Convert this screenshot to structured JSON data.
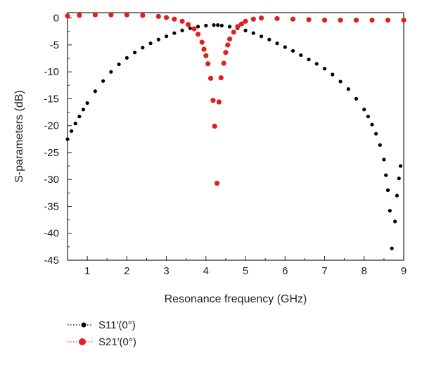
{
  "chart_data": {
    "type": "scatter",
    "xlabel": "Resonance frequency (GHz)",
    "ylabel": "S-parameters (dB)",
    "xlim": [
      0.5,
      9
    ],
    "ylim": [
      -45,
      1
    ],
    "xticks": [
      1,
      2,
      3,
      4,
      5,
      6,
      7,
      8,
      9
    ],
    "yticks": [
      0,
      -5,
      -10,
      -15,
      -20,
      -25,
      -30,
      -35,
      -40,
      -45
    ],
    "grid": false,
    "legend": "bottom-left, below plot",
    "series": [
      {
        "name": "S11′(0°)",
        "color": "#000000",
        "points": [
          [
            0.5,
            -22.5
          ],
          [
            0.6,
            -21.0
          ],
          [
            0.7,
            -19.6
          ],
          [
            0.8,
            -18.3
          ],
          [
            0.9,
            -17.0
          ],
          [
            1.0,
            -15.8
          ],
          [
            1.2,
            -13.6
          ],
          [
            1.4,
            -11.7
          ],
          [
            1.6,
            -10.0
          ],
          [
            1.8,
            -8.6
          ],
          [
            2.0,
            -7.4
          ],
          [
            2.2,
            -6.4
          ],
          [
            2.4,
            -5.5
          ],
          [
            2.6,
            -4.7
          ],
          [
            2.8,
            -4.0
          ],
          [
            3.0,
            -3.4
          ],
          [
            3.2,
            -2.8
          ],
          [
            3.4,
            -2.3
          ],
          [
            3.6,
            -1.9
          ],
          [
            3.8,
            -1.6
          ],
          [
            4.0,
            -1.4
          ],
          [
            4.2,
            -1.3
          ],
          [
            4.3,
            -1.3
          ],
          [
            4.4,
            -1.4
          ],
          [
            4.6,
            -1.6
          ],
          [
            4.8,
            -1.9
          ],
          [
            5.0,
            -2.3
          ],
          [
            5.2,
            -2.8
          ],
          [
            5.4,
            -3.4
          ],
          [
            5.6,
            -4.0
          ],
          [
            5.8,
            -4.7
          ],
          [
            6.0,
            -5.4
          ],
          [
            6.2,
            -6.1
          ],
          [
            6.4,
            -6.9
          ],
          [
            6.6,
            -7.7
          ],
          [
            6.8,
            -8.5
          ],
          [
            7.0,
            -9.4
          ],
          [
            7.2,
            -10.5
          ],
          [
            7.4,
            -11.8
          ],
          [
            7.6,
            -13.2
          ],
          [
            7.8,
            -15.0
          ],
          [
            8.0,
            -17.0
          ],
          [
            8.1,
            -18.3
          ],
          [
            8.2,
            -19.8
          ],
          [
            8.3,
            -21.5
          ],
          [
            8.4,
            -23.6
          ],
          [
            8.5,
            -26.3
          ],
          [
            8.55,
            -29.2
          ],
          [
            8.6,
            -32.0
          ],
          [
            8.65,
            -35.8
          ],
          [
            8.7,
            -42.8
          ],
          [
            8.78,
            -37.8
          ],
          [
            8.83,
            -33.0
          ],
          [
            8.88,
            -29.8
          ],
          [
            8.92,
            -27.5
          ]
        ]
      },
      {
        "name": "S21′(0°)",
        "color": "#e02020",
        "points": [
          [
            0.5,
            0.4
          ],
          [
            0.8,
            0.5
          ],
          [
            1.2,
            0.6
          ],
          [
            1.6,
            0.6
          ],
          [
            2.0,
            0.6
          ],
          [
            2.4,
            0.5
          ],
          [
            2.8,
            0.3
          ],
          [
            3.0,
            0.1
          ],
          [
            3.2,
            -0.2
          ],
          [
            3.4,
            -0.6
          ],
          [
            3.55,
            -1.2
          ],
          [
            3.7,
            -2.0
          ],
          [
            3.8,
            -3.0
          ],
          [
            3.9,
            -4.5
          ],
          [
            3.95,
            -5.8
          ],
          [
            4.0,
            -7.0
          ],
          [
            4.05,
            -8.5
          ],
          [
            4.12,
            -11.2
          ],
          [
            4.18,
            -15.3
          ],
          [
            4.22,
            -20.1
          ],
          [
            4.28,
            -30.7
          ],
          [
            4.33,
            -15.6
          ],
          [
            4.38,
            -11.1
          ],
          [
            4.45,
            -8.4
          ],
          [
            4.5,
            -6.4
          ],
          [
            4.55,
            -5.0
          ],
          [
            4.6,
            -3.9
          ],
          [
            4.7,
            -2.6
          ],
          [
            4.8,
            -1.6
          ],
          [
            4.9,
            -1.1
          ],
          [
            5.0,
            -0.6
          ],
          [
            5.2,
            -0.2
          ],
          [
            5.4,
            0.0
          ],
          [
            5.8,
            -0.1
          ],
          [
            6.2,
            -0.2
          ],
          [
            6.6,
            -0.3
          ],
          [
            7.0,
            -0.4
          ],
          [
            7.4,
            -0.4
          ],
          [
            7.8,
            -0.4
          ],
          [
            8.2,
            -0.4
          ],
          [
            8.6,
            -0.4
          ],
          [
            9.0,
            -0.4
          ]
        ]
      }
    ]
  }
}
